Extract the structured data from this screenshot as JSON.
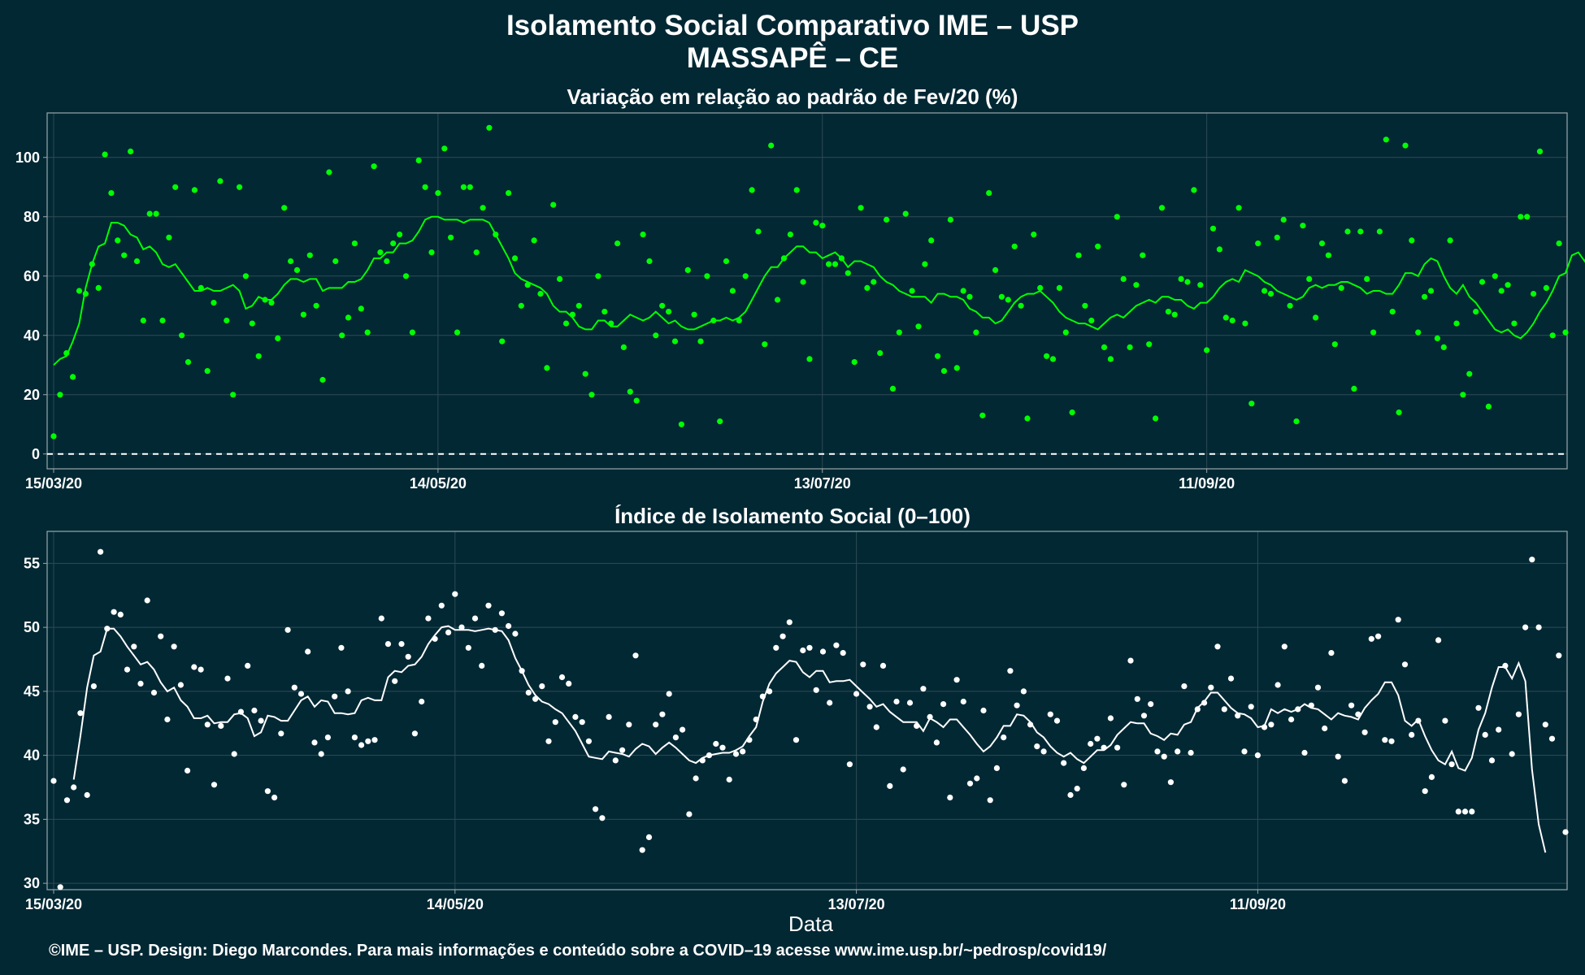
{
  "header": {
    "title_line1": "Isolamento Social Comparativo IME – USP",
    "title_line2": "MASSAPÊ – CE"
  },
  "footer": {
    "text": "©IME – USP. Design: Diego Marcondes. Para mais informações e conteúdo sobre a COVID–19 acesse www.ime.usp.br/~pedrosp/covid19/"
  },
  "colors": {
    "background": "#022834",
    "panel_border": "#9aa6ab",
    "grid": "#2f4a54",
    "top_series": "#00ff00",
    "bottom_series": "#ffffff"
  },
  "chart_data": [
    {
      "type": "scatter",
      "title": "Variação em relação ao padrão de Fev/20 (%)",
      "xlabel": "",
      "ylabel": "",
      "x_start": "15/03/20",
      "x_ticks": [
        "15/03/20",
        "14/05/20",
        "13/07/20",
        "11/09/20"
      ],
      "x_tick_days": [
        0,
        60,
        120,
        180
      ],
      "ylim": [
        -5,
        115
      ],
      "yticks": [
        0,
        20,
        40,
        60,
        80,
        100
      ],
      "reference_line": 0,
      "grid": true,
      "series": [
        {
          "values": [
            6,
            20,
            34,
            26,
            55,
            54,
            64,
            56,
            101,
            88,
            72,
            67,
            102,
            65,
            45,
            81,
            81,
            45,
            73,
            90,
            40,
            31,
            89,
            56,
            28,
            51,
            92,
            45,
            20,
            90,
            60,
            44,
            33,
            52,
            51,
            39,
            83,
            65,
            62,
            47,
            67,
            50,
            25,
            95,
            65,
            40,
            46,
            71,
            49,
            41,
            97,
            68,
            65,
            71,
            74,
            60,
            41,
            99,
            90,
            68,
            88,
            103,
            73,
            41,
            90,
            90,
            68,
            83,
            110,
            74,
            38,
            88,
            66,
            50,
            57,
            72,
            54,
            29,
            84,
            59,
            44,
            47,
            50,
            27,
            20,
            60,
            48,
            44,
            71,
            36,
            21,
            18,
            74,
            65,
            40,
            50,
            48,
            38,
            10,
            62,
            47,
            38,
            60,
            45,
            11,
            65,
            55,
            45,
            60,
            89,
            75,
            37,
            104,
            52,
            66,
            74,
            89,
            58,
            32,
            78,
            77,
            64,
            64,
            66,
            61,
            31,
            83,
            56,
            58,
            34,
            79,
            22,
            41,
            81,
            55,
            43,
            64,
            72,
            33,
            28,
            79,
            29,
            55,
            53,
            41,
            13,
            88,
            62,
            53,
            52,
            70,
            50,
            12,
            74,
            56,
            33,
            32,
            56,
            41,
            14,
            67,
            50,
            45,
            70,
            36,
            32,
            80,
            59,
            36,
            57,
            67,
            37,
            12,
            83,
            48,
            47,
            59,
            58,
            89,
            57,
            35,
            76,
            69,
            46,
            45,
            83,
            44,
            17,
            71,
            55,
            54,
            73,
            79,
            50,
            11,
            77,
            59,
            46,
            71,
            67,
            37,
            56,
            75,
            22,
            75,
            59,
            41,
            75,
            106,
            48,
            14,
            104,
            72,
            41,
            53,
            55,
            39,
            36,
            72,
            44,
            20,
            27,
            48,
            58,
            16,
            60,
            55,
            57,
            44,
            80,
            80,
            54,
            102,
            56,
            40,
            71,
            41
          ],
          "smooth": [
            30,
            32,
            33,
            38,
            44,
            56,
            64,
            70,
            71,
            78,
            78,
            77,
            74,
            73,
            69,
            70,
            68,
            64,
            63,
            64,
            61,
            58,
            55,
            55,
            56,
            55,
            55,
            56,
            57,
            55,
            49,
            50,
            53,
            52,
            52,
            54,
            57,
            59,
            59,
            58,
            59,
            59,
            55,
            56,
            56,
            56,
            58,
            58,
            59,
            62,
            66,
            66,
            68,
            68,
            71,
            71,
            72,
            75,
            79,
            80,
            80,
            79,
            79,
            79,
            78,
            79,
            79,
            79,
            78,
            74,
            70,
            66,
            61,
            59,
            58,
            57,
            56,
            54,
            50,
            48,
            48,
            46,
            43,
            42,
            42,
            45,
            45,
            43,
            43,
            45,
            47,
            46,
            45,
            46,
            48,
            46,
            44,
            45,
            43,
            42,
            42,
            43,
            44,
            45,
            45,
            46,
            45,
            46,
            48,
            52,
            56,
            60,
            63,
            63,
            66,
            68,
            70,
            70,
            68,
            68,
            66,
            67,
            68,
            66,
            63,
            65,
            65,
            64,
            63,
            60,
            58,
            57,
            55,
            54,
            53,
            53,
            53,
            51,
            54,
            54,
            53,
            53,
            52,
            49,
            48,
            46,
            46,
            44,
            45,
            48,
            51,
            53,
            54,
            54,
            55,
            53,
            51,
            48,
            46,
            45,
            44,
            44,
            43,
            42,
            44,
            46,
            47,
            46,
            48,
            50,
            51,
            52,
            51,
            53,
            53,
            52,
            52,
            50,
            49,
            51,
            51,
            53,
            56,
            58,
            59,
            58,
            62,
            61,
            60,
            58,
            57,
            55,
            54,
            53,
            52,
            53,
            56,
            57,
            56,
            57,
            57,
            58,
            58,
            57,
            56,
            54,
            55,
            55,
            54,
            54,
            57,
            61,
            61,
            60,
            64,
            66,
            65,
            60,
            56,
            54,
            57,
            53,
            51,
            48,
            45,
            42,
            41,
            42,
            40,
            39,
            41,
            44,
            48,
            51,
            55,
            60,
            61,
            67,
            68,
            65,
            69,
            64
          ]
        }
      ]
    },
    {
      "type": "scatter",
      "title": "Índice de Isolamento Social (0–100)",
      "xlabel": "Data",
      "ylabel": "",
      "x_start": "15/03/20",
      "x_ticks": [
        "15/03/20",
        "14/05/20",
        "13/07/20",
        "11/09/20"
      ],
      "x_tick_days": [
        0,
        60,
        120,
        180
      ],
      "ylim": [
        29.5,
        57.5
      ],
      "yticks": [
        30,
        35,
        40,
        45,
        50,
        55
      ],
      "grid": true,
      "series": [
        {
          "values": [
            38,
            29.7,
            36.5,
            37.5,
            43.3,
            36.9,
            45.4,
            55.9,
            49.9,
            51.2,
            51,
            46.7,
            48.5,
            45.6,
            52.1,
            44.9,
            49.3,
            42.8,
            48.5,
            45.5,
            38.8,
            46.9,
            46.7,
            42.4,
            37.7,
            42.3,
            46,
            40.1,
            43.4,
            47,
            43.5,
            42.7,
            37.2,
            36.7,
            41.7,
            49.8,
            45.3,
            44.8,
            48.1,
            41,
            40.1,
            41.4,
            44.6,
            48.4,
            45,
            41.4,
            40.8,
            41.1,
            41.2,
            50.7,
            48.7,
            45.8,
            48.7,
            47.7,
            41.7,
            44.2,
            50.7,
            49.1,
            51.7,
            49.6,
            52.6,
            50,
            48.4,
            50.7,
            47,
            51.7,
            49.8,
            51.1,
            50.1,
            49.5,
            46.6,
            44.9,
            44.4,
            45.4,
            41.1,
            42.6,
            46.1,
            45.6,
            43,
            42.6,
            41.1,
            35.8,
            35.1,
            43,
            39.6,
            40.4,
            42.4,
            47.8,
            32.6,
            33.6,
            42.4,
            43.2,
            44.8,
            41.4,
            42,
            35.4,
            38.2,
            39.6,
            40,
            40.9,
            40.6,
            38.1,
            40.1,
            40.3,
            41.2,
            42.8,
            44.6,
            45,
            48.4,
            49.3,
            50.4,
            41.2,
            48.2,
            48.4,
            45.1,
            48.1,
            44.1,
            48.6,
            48,
            39.3,
            44.8,
            47.1,
            43.8,
            42.2,
            47,
            37.6,
            44.2,
            38.9,
            44.1,
            42.3,
            45.2,
            43,
            41,
            44,
            36.7,
            45.9,
            44.2,
            37.8,
            38.2,
            43.5,
            36.5,
            39,
            41.4,
            46.6,
            43.9,
            45,
            42.4,
            40.7,
            40.3,
            43.2,
            42.7,
            39.4,
            36.9,
            37.4,
            39,
            40.9,
            41.3,
            40.6,
            42.9,
            40.6,
            37.7,
            47.4,
            44.4,
            43.1,
            44,
            40.3,
            39.9,
            37.9,
            40.3,
            45.4,
            40.2,
            43.6,
            44.1,
            45.3,
            48.5,
            43.6,
            46,
            43.1,
            40.3,
            43.8,
            40,
            42.2,
            42.4,
            45.5,
            48.5,
            42.8,
            43.6,
            40.2,
            43.9,
            45.3,
            42.1,
            48,
            39.9,
            38,
            43.9,
            43.2,
            41.8,
            49.1,
            49.3,
            41.2,
            41.1,
            50.6,
            47.1,
            41.6,
            42.7,
            37.2,
            38.3,
            49,
            42.7,
            39.3,
            35.6,
            35.6,
            35.6,
            43.7,
            41.6,
            39.6,
            42,
            47,
            40.1,
            43.2,
            50,
            55.3,
            50,
            42.4,
            41.3,
            47.8,
            34
          ],
          "smooth": [
            null,
            null,
            null,
            38.1,
            41.5,
            45.3,
            47.8,
            48.1,
            49.9,
            49.9,
            49.3,
            48.5,
            47.8,
            47.1,
            47.3,
            46.7,
            45.7,
            45,
            45.3,
            44.3,
            43.8,
            42.9,
            42.9,
            43.1,
            42.5,
            42.6,
            42.6,
            43.2,
            43.3,
            42.9,
            41.5,
            41.8,
            43.1,
            43,
            42.7,
            42.7,
            43.5,
            44.3,
            44.6,
            43.8,
            44.3,
            44.2,
            43.3,
            43.3,
            43.2,
            43.3,
            44.3,
            44.5,
            44.3,
            44.3,
            46.1,
            46.6,
            46.5,
            47,
            47.1,
            47.7,
            48.7,
            49.4,
            50,
            50.1,
            49.8,
            49.8,
            49.8,
            49.7,
            49.8,
            49.9,
            49.8,
            49.7,
            49,
            47.6,
            46.6,
            45.5,
            44.7,
            44.2,
            44,
            43.6,
            43.3,
            42.6,
            41.9,
            40.9,
            39.9,
            39.8,
            39.7,
            40.3,
            40.2,
            40.1,
            39.9,
            40.5,
            40.9,
            40.7,
            40.1,
            40.6,
            41,
            40.6,
            40.1,
            39.6,
            39.4,
            39.8,
            40,
            40.1,
            40.2,
            40.2,
            40.4,
            40.7,
            41.5,
            42.2,
            44.2,
            45.6,
            46.4,
            46.9,
            47.4,
            47.3,
            46.5,
            46.1,
            46.6,
            46.6,
            45.7,
            45.8,
            45.8,
            45.9,
            45.4,
            44.9,
            44.4,
            43.8,
            44,
            43.4,
            43,
            42.6,
            42.6,
            42.6,
            41.9,
            42.9,
            42.6,
            42.2,
            42.8,
            42.8,
            42.2,
            41.6,
            40.9,
            40.3,
            40.7,
            41.4,
            42.3,
            42.3,
            43.2,
            43.1,
            42.6,
            41.8,
            41.4,
            40.7,
            40.2,
            39.9,
            40.2,
            39.7,
            39.4,
            39.9,
            40.4,
            40.4,
            40.8,
            41.6,
            42.1,
            42.6,
            42.5,
            42.5,
            41.7,
            41.5,
            41.2,
            41.7,
            41.6,
            42.4,
            42.6,
            43.7,
            44.2,
            44.9,
            44.9,
            44.3,
            43.7,
            43.3,
            43.2,
            42.9,
            42.2,
            42.3,
            43.6,
            43.3,
            43.6,
            43.4,
            43.6,
            44,
            43.7,
            43.6,
            43.2,
            42.8,
            43.3,
            43.1,
            43,
            42.8,
            43.7,
            44.3,
            44.8,
            45.7,
            45.7,
            44.7,
            42.7,
            42.3,
            42.8,
            41.5,
            40.4,
            39.6,
            39.3,
            40.3,
            39,
            38.8,
            39.8,
            42,
            43.3,
            45.3,
            46.9,
            46.9,
            46,
            47.2,
            45.8,
            38.9,
            34.6,
            32.4
          ]
        }
      ]
    }
  ]
}
